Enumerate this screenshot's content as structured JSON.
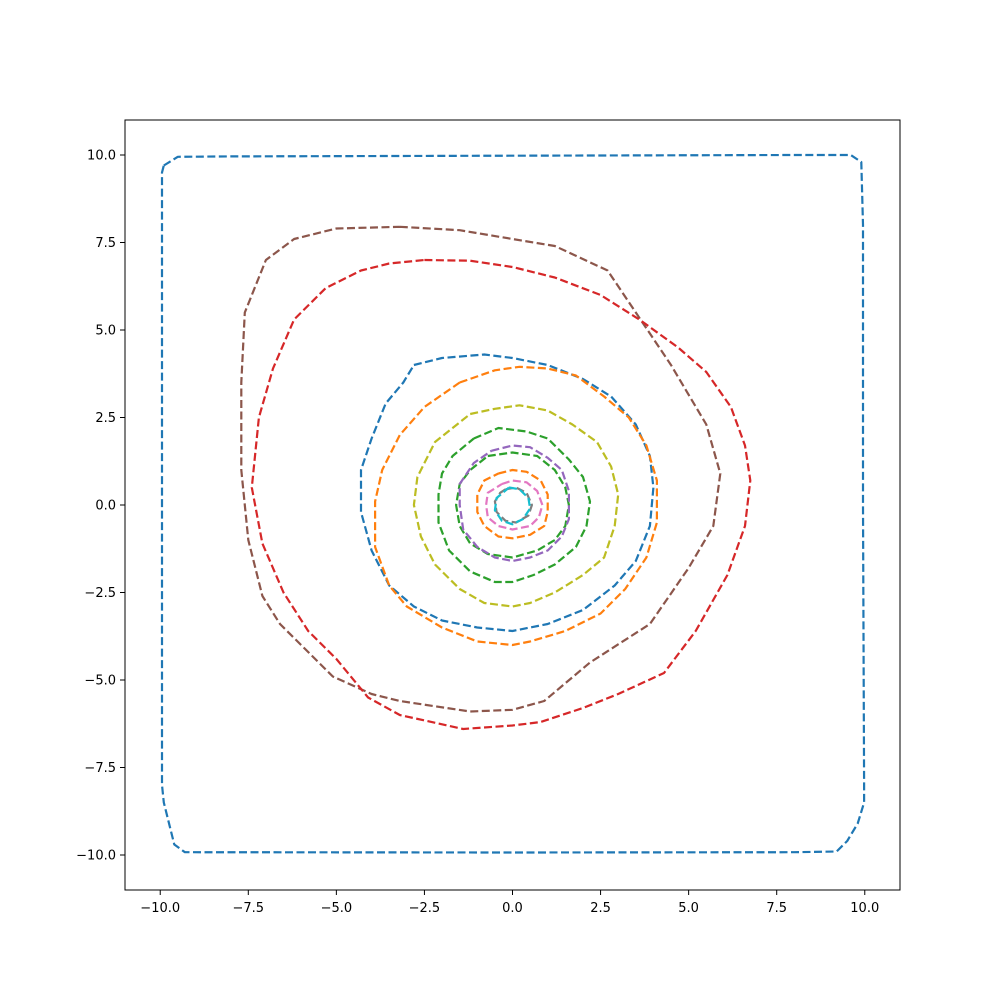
{
  "chart_data": {
    "type": "line",
    "title": "",
    "xlabel": "",
    "ylabel": "",
    "xlim": [
      -11,
      11
    ],
    "ylim": [
      -11,
      11
    ],
    "grid": false,
    "x_ticks": [
      -10,
      -7.5,
      -5,
      -2.5,
      0,
      2.5,
      5,
      7.5,
      10
    ],
    "x_tick_labels": [
      "−10.0",
      "−7.5",
      "−5.0",
      "−2.5",
      "0.0",
      "2.5",
      "5.0",
      "7.5",
      "10.0"
    ],
    "y_ticks": [
      -10,
      -7.5,
      -5,
      -2.5,
      0,
      2.5,
      5,
      7.5,
      10
    ],
    "y_tick_labels": [
      "−10.0",
      "−7.5",
      "−5.0",
      "−2.5",
      "0.0",
      "2.5",
      "5.0",
      "7.5",
      "10.0"
    ],
    "line_style": "dashed",
    "series": [
      {
        "color": "#1f77b4",
        "points": [
          [
            -9.9,
            9.7
          ],
          [
            -9.5,
            9.95
          ],
          [
            -8,
            9.96
          ],
          [
            0,
            9.98
          ],
          [
            8,
            10
          ],
          [
            9.6,
            10
          ],
          [
            9.9,
            9.8
          ],
          [
            9.95,
            8
          ],
          [
            9.95,
            0
          ],
          [
            9.98,
            -8
          ],
          [
            9.98,
            -8.5
          ],
          [
            9.8,
            -9.1
          ],
          [
            9.5,
            -9.6
          ],
          [
            9.2,
            -9.9
          ],
          [
            8,
            -9.92
          ],
          [
            0,
            -9.93
          ],
          [
            -9.3,
            -9.92
          ],
          [
            -9.6,
            -9.7
          ],
          [
            -9.9,
            -8.5
          ],
          [
            -9.95,
            -8
          ],
          [
            -9.95,
            0
          ],
          [
            -9.95,
            9.5
          ],
          [
            -9.9,
            9.7
          ]
        ]
      },
      {
        "color": "#8c564b",
        "points": [
          [
            -3.2,
            7.95
          ],
          [
            -1.5,
            7.85
          ],
          [
            0,
            7.6
          ],
          [
            1.2,
            7.4
          ],
          [
            2.7,
            6.7
          ],
          [
            3.5,
            5.5
          ],
          [
            4.5,
            4
          ],
          [
            5.5,
            2.3
          ],
          [
            5.9,
            0.9
          ],
          [
            5.7,
            -0.6
          ],
          [
            5,
            -1.8
          ],
          [
            3.9,
            -3.4
          ],
          [
            2.2,
            -4.5
          ],
          [
            0.9,
            -5.6
          ],
          [
            0,
            -5.85
          ],
          [
            -1.2,
            -5.9
          ],
          [
            -3.2,
            -5.6
          ],
          [
            -4,
            -5.4
          ],
          [
            -5.1,
            -4.9
          ],
          [
            -6,
            -4
          ],
          [
            -6.6,
            -3.4
          ],
          [
            -7.1,
            -2.6
          ],
          [
            -7.5,
            -1
          ],
          [
            -7.7,
            1
          ],
          [
            -7.7,
            3.5
          ],
          [
            -7.6,
            5.5
          ],
          [
            -7,
            7
          ],
          [
            -6.2,
            7.6
          ],
          [
            -5,
            7.9
          ],
          [
            -3.2,
            7.95
          ]
        ]
      },
      {
        "color": "#d62728",
        "points": [
          [
            -2.5,
            7
          ],
          [
            -1.2,
            6.98
          ],
          [
            0,
            6.8
          ],
          [
            1.2,
            6.5
          ],
          [
            2.5,
            6
          ],
          [
            3.6,
            5.3
          ],
          [
            4.7,
            4.5
          ],
          [
            5.5,
            3.8
          ],
          [
            6.2,
            2.8
          ],
          [
            6.6,
            1.7
          ],
          [
            6.75,
            0.7
          ],
          [
            6.6,
            -0.6
          ],
          [
            6.1,
            -2
          ],
          [
            5.2,
            -3.6
          ],
          [
            4.3,
            -4.8
          ],
          [
            3,
            -5.4
          ],
          [
            2,
            -5.8
          ],
          [
            0.8,
            -6.2
          ],
          [
            0,
            -6.3
          ],
          [
            -1.4,
            -6.4
          ],
          [
            -3.2,
            -6
          ],
          [
            -4.1,
            -5.5
          ],
          [
            -5,
            -4.4
          ],
          [
            -5.8,
            -3.6
          ],
          [
            -6.5,
            -2.5
          ],
          [
            -7.1,
            -1.1
          ],
          [
            -7.4,
            0.5
          ],
          [
            -7.2,
            2.5
          ],
          [
            -6.8,
            3.9
          ],
          [
            -6.2,
            5.3
          ],
          [
            -5.3,
            6.2
          ],
          [
            -4.3,
            6.7
          ],
          [
            -3.5,
            6.9
          ],
          [
            -2.5,
            7
          ]
        ]
      },
      {
        "color": "#1f77b4",
        "points": [
          [
            -2.8,
            4
          ],
          [
            -2,
            4.2
          ],
          [
            -0.8,
            4.3
          ],
          [
            0,
            4.2
          ],
          [
            1,
            4
          ],
          [
            2,
            3.6
          ],
          [
            2.8,
            3.1
          ],
          [
            3.5,
            2.3
          ],
          [
            3.9,
            1.4
          ],
          [
            4,
            0.5
          ],
          [
            3.9,
            -0.6
          ],
          [
            3.5,
            -1.6
          ],
          [
            2.9,
            -2.3
          ],
          [
            2,
            -3
          ],
          [
            1,
            -3.4
          ],
          [
            0,
            -3.6
          ],
          [
            -1,
            -3.5
          ],
          [
            -2,
            -3.3
          ],
          [
            -2.8,
            -2.9
          ],
          [
            -3.5,
            -2.3
          ],
          [
            -4,
            -1.3
          ],
          [
            -4.3,
            -0.2
          ],
          [
            -4.3,
            1
          ],
          [
            -4,
            1.9
          ],
          [
            -3.6,
            2.9
          ],
          [
            -3.1,
            3.5
          ],
          [
            -2.8,
            4
          ]
        ]
      },
      {
        "color": "#ff7f0e",
        "points": [
          [
            -1.5,
            3.5
          ],
          [
            -0.5,
            3.85
          ],
          [
            0.2,
            3.95
          ],
          [
            1,
            3.9
          ],
          [
            1.8,
            3.7
          ],
          [
            2.6,
            3.1
          ],
          [
            3.3,
            2.5
          ],
          [
            3.8,
            1.7
          ],
          [
            4.1,
            0.7
          ],
          [
            4.1,
            -0.5
          ],
          [
            3.8,
            -1.5
          ],
          [
            3.2,
            -2.4
          ],
          [
            2.5,
            -3.1
          ],
          [
            1.5,
            -3.6
          ],
          [
            0.5,
            -3.9
          ],
          [
            0,
            -4
          ],
          [
            -1,
            -3.9
          ],
          [
            -2,
            -3.5
          ],
          [
            -3,
            -2.9
          ],
          [
            -3.5,
            -2.3
          ],
          [
            -3.9,
            -1.2
          ],
          [
            -3.9,
            0.1
          ],
          [
            -3.7,
            1
          ],
          [
            -3.2,
            2
          ],
          [
            -2.5,
            2.8
          ],
          [
            -1.5,
            3.5
          ]
        ]
      },
      {
        "color": "#bcbd22",
        "points": [
          [
            -1.2,
            2.6
          ],
          [
            -0.5,
            2.75
          ],
          [
            0.2,
            2.85
          ],
          [
            1,
            2.7
          ],
          [
            1.7,
            2.3
          ],
          [
            2.4,
            1.8
          ],
          [
            2.8,
            1.1
          ],
          [
            3,
            0.3
          ],
          [
            2.9,
            -0.6
          ],
          [
            2.6,
            -1.5
          ],
          [
            2,
            -2
          ],
          [
            1.2,
            -2.5
          ],
          [
            0.5,
            -2.8
          ],
          [
            0,
            -2.9
          ],
          [
            -0.8,
            -2.8
          ],
          [
            -1.5,
            -2.4
          ],
          [
            -2.2,
            -1.7
          ],
          [
            -2.6,
            -0.9
          ],
          [
            -2.8,
            0
          ],
          [
            -2.7,
            0.8
          ],
          [
            -2.2,
            1.8
          ],
          [
            -1.7,
            2.2
          ],
          [
            -1.2,
            2.6
          ]
        ]
      },
      {
        "color": "#2ca02c",
        "points": [
          [
            -1.1,
            1.9
          ],
          [
            -0.4,
            2.2
          ],
          [
            0.4,
            2.1
          ],
          [
            1,
            1.9
          ],
          [
            1.6,
            1.3
          ],
          [
            2,
            0.8
          ],
          [
            2.2,
            0.1
          ],
          [
            2.1,
            -0.6
          ],
          [
            1.8,
            -1.2
          ],
          [
            1.2,
            -1.7
          ],
          [
            0.6,
            -2
          ],
          [
            0,
            -2.2
          ],
          [
            -0.5,
            -2.2
          ],
          [
            -1.2,
            -1.9
          ],
          [
            -1.8,
            -1.3
          ],
          [
            -2.1,
            -0.5
          ],
          [
            -2.1,
            0.3
          ],
          [
            -2,
            0.9
          ],
          [
            -1.7,
            1.4
          ],
          [
            -1.1,
            1.9
          ]
        ]
      },
      {
        "color": "#2ca02c",
        "points": [
          [
            -0.7,
            1.4
          ],
          [
            0,
            1.5
          ],
          [
            0.7,
            1.4
          ],
          [
            1.2,
            1
          ],
          [
            1.5,
            0.5
          ],
          [
            1.6,
            0
          ],
          [
            1.5,
            -0.6
          ],
          [
            1.2,
            -1
          ],
          [
            0.7,
            -1.3
          ],
          [
            0,
            -1.5
          ],
          [
            -0.7,
            -1.4
          ],
          [
            -1.2,
            -1.1
          ],
          [
            -1.5,
            -0.6
          ],
          [
            -1.6,
            0
          ],
          [
            -1.5,
            0.6
          ],
          [
            -1.2,
            1
          ],
          [
            -0.7,
            1.4
          ]
        ]
      },
      {
        "color": "#9467bd",
        "points": [
          [
            -0.6,
            1.55
          ],
          [
            0,
            1.7
          ],
          [
            0.5,
            1.65
          ],
          [
            1,
            1.35
          ],
          [
            1.4,
            1
          ],
          [
            1.6,
            0.4
          ],
          [
            1.6,
            -0.4
          ],
          [
            1.4,
            -0.9
          ],
          [
            1,
            -1.3
          ],
          [
            0.5,
            -1.5
          ],
          [
            0,
            -1.6
          ],
          [
            -0.5,
            -1.5
          ],
          [
            -1,
            -1.2
          ],
          [
            -1.4,
            -0.7
          ],
          [
            -1.5,
            0
          ],
          [
            -1.5,
            0.6
          ],
          [
            -1.1,
            1.2
          ],
          [
            -0.6,
            1.55
          ]
        ]
      },
      {
        "color": "#ff7f0e",
        "points": [
          [
            -0.4,
            0.9
          ],
          [
            0,
            1
          ],
          [
            0.4,
            0.95
          ],
          [
            0.8,
            0.7
          ],
          [
            1,
            0.3
          ],
          [
            1,
            -0.2
          ],
          [
            0.9,
            -0.6
          ],
          [
            0.5,
            -0.85
          ],
          [
            0,
            -0.95
          ],
          [
            -0.4,
            -0.9
          ],
          [
            -0.8,
            -0.6
          ],
          [
            -1,
            -0.2
          ],
          [
            -1,
            0.3
          ],
          [
            -0.8,
            0.7
          ],
          [
            -0.4,
            0.9
          ]
        ]
      },
      {
        "color": "#e377c2",
        "points": [
          [
            -0.3,
            0.6
          ],
          [
            0,
            0.7
          ],
          [
            0.4,
            0.65
          ],
          [
            0.7,
            0.4
          ],
          [
            0.85,
            0
          ],
          [
            0.75,
            -0.35
          ],
          [
            0.5,
            -0.6
          ],
          [
            0,
            -0.7
          ],
          [
            -0.4,
            -0.6
          ],
          [
            -0.7,
            -0.35
          ],
          [
            -0.75,
            0
          ],
          [
            -0.7,
            0.35
          ],
          [
            -0.3,
            0.6
          ]
        ]
      },
      {
        "color": "#7f7f7f",
        "points": [
          [
            -0.2,
            0.45
          ],
          [
            0.1,
            0.5
          ],
          [
            0.4,
            0.35
          ],
          [
            0.55,
            0
          ],
          [
            0.45,
            -0.3
          ],
          [
            0.1,
            -0.5
          ],
          [
            -0.2,
            -0.45
          ],
          [
            -0.45,
            -0.2
          ],
          [
            -0.5,
            0.1
          ],
          [
            -0.35,
            0.35
          ],
          [
            -0.2,
            0.45
          ]
        ]
      },
      {
        "color": "#17becf",
        "points": [
          [
            -0.1,
            0.5
          ],
          [
            0.2,
            0.45
          ],
          [
            0.45,
            0.2
          ],
          [
            0.5,
            -0.1
          ],
          [
            0.3,
            -0.4
          ],
          [
            0,
            -0.55
          ],
          [
            -0.3,
            -0.45
          ],
          [
            -0.5,
            -0.15
          ],
          [
            -0.45,
            0.2
          ],
          [
            -0.1,
            0.5
          ]
        ]
      }
    ]
  }
}
